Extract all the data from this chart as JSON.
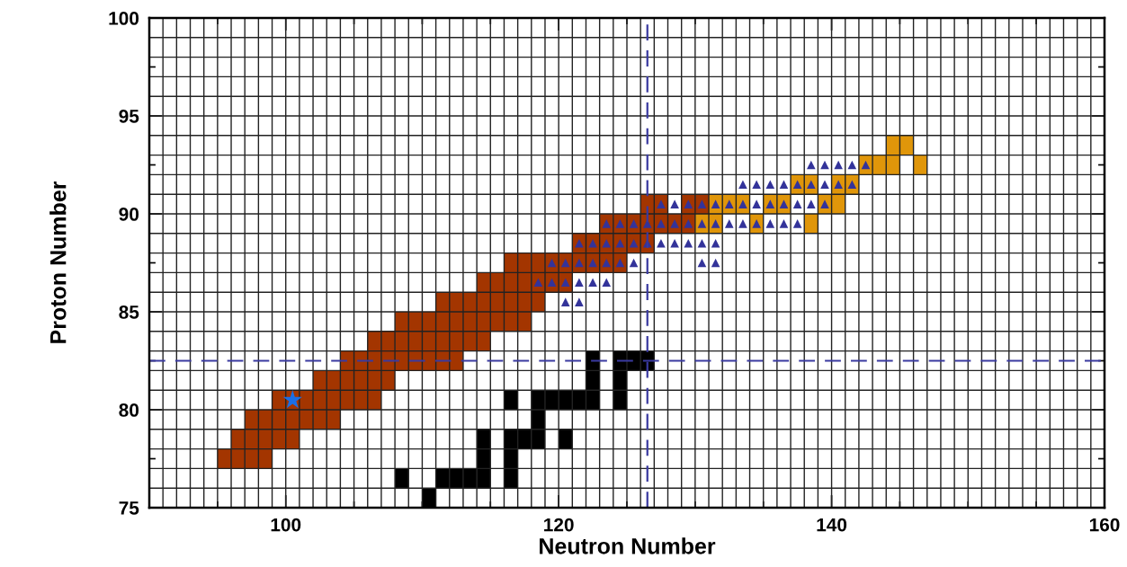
{
  "chart_data": {
    "type": "scatter",
    "xlabel": "Neutron Number",
    "ylabel": "Proton Number",
    "xlim": [
      90,
      160
    ],
    "ylim": [
      75,
      100
    ],
    "xticks": [
      {
        "value": 95,
        "label": null
      },
      100,
      {
        "value": 105,
        "label": null
      },
      {
        "value": 110,
        "label": null
      },
      {
        "value": 115,
        "label": null
      },
      120,
      {
        "value": 125,
        "label": null
      },
      {
        "value": 130,
        "label": null
      },
      {
        "value": 135,
        "label": null
      },
      140,
      {
        "value": 145,
        "label": null
      },
      {
        "value": 150,
        "label": null
      },
      {
        "value": 155,
        "label": null
      },
      160
    ],
    "yticks": [
      75,
      {
        "value": 77.5,
        "label": null
      },
      80,
      {
        "value": 82.5,
        "label": null
      },
      85,
      {
        "value": 87.5,
        "label": null
      },
      90,
      {
        "value": 92.5,
        "label": null
      },
      95,
      {
        "value": 97.5,
        "label": null
      },
      100
    ],
    "grid": true,
    "ref_lines": [
      {
        "axis": "x",
        "value": 126.5,
        "color": "#3a3aa0",
        "line_style": "dashed"
      },
      {
        "axis": "y",
        "value": 82.5,
        "color": "#3a3aa0",
        "line_style": "dashed"
      }
    ],
    "series": [
      {
        "type": "scatter",
        "marker": "square",
        "color": "#a33500",
        "x": [
          95.5,
          96.5,
          97.5,
          98.5,
          96.5,
          97.5,
          98.5,
          99.5,
          100.5,
          97.5,
          98.5,
          99.5,
          100.5,
          101.5,
          102.5,
          103.5,
          99.5,
          100.5,
          101.5,
          102.5,
          103.5,
          104.5,
          105.5,
          106.5,
          102.5,
          103.5,
          104.5,
          105.5,
          106.5,
          107.5,
          104.5,
          105.5,
          106.5,
          107.5,
          108.5,
          109.5,
          110.5,
          111.5,
          112.5,
          106.5,
          107.5,
          108.5,
          109.5,
          110.5,
          111.5,
          112.5,
          113.5,
          114.5,
          108.5,
          109.5,
          110.5,
          111.5,
          112.5,
          113.5,
          114.5,
          115.5,
          116.5,
          117.5,
          111.5,
          112.5,
          113.5,
          114.5,
          115.5,
          116.5,
          117.5,
          118.5,
          114.5,
          115.5,
          116.5,
          117.5,
          118.5,
          119.5,
          120.5,
          116.5,
          117.5,
          118.5,
          119.5,
          120.5,
          121.5,
          122.5,
          123.5,
          124.5,
          121.5,
          122.5,
          123.5,
          124.5,
          125.5,
          126.5,
          123.5,
          124.5,
          125.5,
          126.5,
          127.5,
          128.5,
          129.5,
          126.5,
          127.5,
          129.5,
          130.5
        ],
        "values": [
          77.5,
          77.5,
          77.5,
          77.5,
          78.5,
          78.5,
          78.5,
          78.5,
          78.5,
          79.5,
          79.5,
          79.5,
          79.5,
          79.5,
          79.5,
          79.5,
          80.5,
          80.5,
          80.5,
          80.5,
          80.5,
          80.5,
          80.5,
          80.5,
          81.5,
          81.5,
          81.5,
          81.5,
          81.5,
          81.5,
          82.5,
          82.5,
          82.5,
          82.5,
          82.5,
          82.5,
          82.5,
          82.5,
          82.5,
          83.5,
          83.5,
          83.5,
          83.5,
          83.5,
          83.5,
          83.5,
          83.5,
          83.5,
          84.5,
          84.5,
          84.5,
          84.5,
          84.5,
          84.5,
          84.5,
          84.5,
          84.5,
          84.5,
          85.5,
          85.5,
          85.5,
          85.5,
          85.5,
          85.5,
          85.5,
          85.5,
          86.5,
          86.5,
          86.5,
          86.5,
          86.5,
          86.5,
          86.5,
          87.5,
          87.5,
          87.5,
          87.5,
          87.5,
          87.5,
          87.5,
          87.5,
          87.5,
          88.5,
          88.5,
          88.5,
          88.5,
          88.5,
          88.5,
          89.5,
          89.5,
          89.5,
          89.5,
          89.5,
          89.5,
          89.5,
          90.5,
          90.5,
          90.5,
          90.5
        ]
      },
      {
        "type": "scatter",
        "marker": "square",
        "color": "#e0960a",
        "x": [
          130.5,
          131.5,
          134.5,
          138.5,
          131.5,
          132.5,
          133.5,
          135.5,
          136.5,
          139.5,
          140.5,
          137.5,
          138.5,
          140.5,
          141.5,
          142.5,
          143.5,
          144.5,
          146.5,
          144.5,
          145.5
        ],
        "values": [
          89.5,
          89.5,
          89.5,
          89.5,
          90.5,
          90.5,
          90.5,
          90.5,
          90.5,
          90.5,
          90.5,
          91.5,
          91.5,
          91.5,
          91.5,
          92.5,
          92.5,
          92.5,
          92.5,
          93.5,
          93.5
        ]
      },
      {
        "type": "scatter",
        "marker": "square",
        "color": "#000000",
        "x": [
          110.5,
          108.5,
          111.5,
          112.5,
          113.5,
          114.5,
          116.5,
          114.5,
          116.5,
          114.5,
          116.5,
          117.5,
          118.5,
          120.5,
          118.5,
          116.5,
          118.5,
          119.5,
          120.5,
          121.5,
          122.5,
          124.5,
          122.5,
          124.5,
          122.5,
          124.5,
          125.5,
          126.5
        ],
        "values": [
          75.5,
          76.5,
          76.5,
          76.5,
          76.5,
          76.5,
          76.5,
          77.5,
          77.5,
          78.5,
          78.5,
          78.5,
          78.5,
          78.5,
          79.5,
          80.5,
          80.5,
          80.5,
          80.5,
          80.5,
          80.5,
          80.5,
          81.5,
          81.5,
          82.5,
          82.5,
          82.5,
          82.5
        ]
      },
      {
        "type": "scatter",
        "marker": "triangle",
        "color": "#33339a",
        "x": [
          120.5,
          121.5,
          118.5,
          119.5,
          120.5,
          121.5,
          122.5,
          123.5,
          119.5,
          120.5,
          121.5,
          122.5,
          123.5,
          124.5,
          125.5,
          130.5,
          131.5,
          121.5,
          122.5,
          123.5,
          124.5,
          125.5,
          126.5,
          127.5,
          128.5,
          129.5,
          130.5,
          131.5,
          123.5,
          124.5,
          125.5,
          126.5,
          127.5,
          128.5,
          129.5,
          130.5,
          131.5,
          132.5,
          133.5,
          134.5,
          135.5,
          136.5,
          137.5,
          127.5,
          128.5,
          129.5,
          130.5,
          131.5,
          132.5,
          133.5,
          134.5,
          135.5,
          136.5,
          137.5,
          138.5,
          139.5,
          133.5,
          134.5,
          135.5,
          136.5,
          137.5,
          138.5,
          139.5,
          140.5,
          141.5,
          138.5,
          139.5,
          140.5,
          141.5,
          142.5
        ],
        "values": [
          85.5,
          85.5,
          86.5,
          86.5,
          86.5,
          86.5,
          86.5,
          86.5,
          87.5,
          87.5,
          87.5,
          87.5,
          87.5,
          87.5,
          87.5,
          87.5,
          87.5,
          88.5,
          88.5,
          88.5,
          88.5,
          88.5,
          88.5,
          88.5,
          88.5,
          88.5,
          88.5,
          88.5,
          89.5,
          89.5,
          89.5,
          89.5,
          89.5,
          89.5,
          89.5,
          89.5,
          89.5,
          89.5,
          89.5,
          89.5,
          89.5,
          89.5,
          89.5,
          90.5,
          90.5,
          90.5,
          90.5,
          90.5,
          90.5,
          90.5,
          90.5,
          90.5,
          90.5,
          90.5,
          90.5,
          90.5,
          91.5,
          91.5,
          91.5,
          91.5,
          91.5,
          91.5,
          91.5,
          91.5,
          91.5,
          92.5,
          92.5,
          92.5,
          92.5,
          92.5
        ]
      },
      {
        "type": "scatter",
        "marker": "star",
        "color": "#1a6fe6",
        "x": [
          100.5
        ],
        "values": [
          80.5
        ]
      }
    ]
  }
}
